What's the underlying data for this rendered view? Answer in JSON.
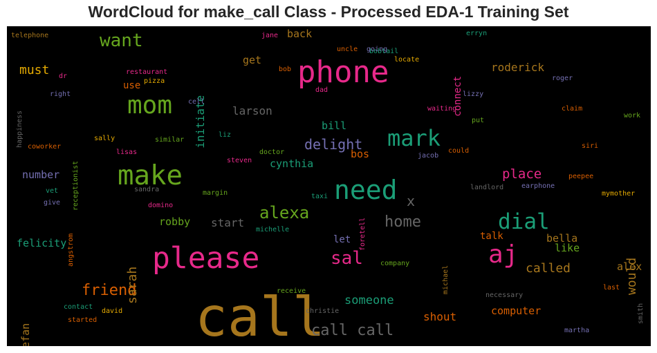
{
  "chart_data": {
    "type": "wordcloud",
    "title": "WordCloud for make_call Class - Processed EDA-1 Training Set",
    "words": [
      {
        "text": "call",
        "color": "#a6761d"
      },
      {
        "text": "please",
        "color": "#e7298a"
      },
      {
        "text": "phone",
        "color": "#e7298a"
      },
      {
        "text": "make",
        "color": "#66a61e"
      },
      {
        "text": "need",
        "color": "#1b9e77"
      },
      {
        "text": "mom",
        "color": "#66a61e"
      },
      {
        "text": "aj",
        "color": "#e7298a"
      },
      {
        "text": "mark",
        "color": "#1b9e77"
      },
      {
        "text": "dial",
        "color": "#1b9e77"
      },
      {
        "text": "want",
        "color": "#66a61e"
      },
      {
        "text": "alexa",
        "color": "#66a61e"
      },
      {
        "text": "friend",
        "color": "#d95f02"
      },
      {
        "text": "sal",
        "color": "#e7298a"
      },
      {
        "text": "home",
        "color": "#666666"
      },
      {
        "text": "call call",
        "color": "#666666"
      },
      {
        "text": "delight",
        "color": "#7570b3"
      },
      {
        "text": "sarah",
        "color": "#a6761d"
      },
      {
        "text": "would",
        "color": "#a6761d"
      },
      {
        "text": "place",
        "color": "#e7298a"
      },
      {
        "text": "called",
        "color": "#a6761d"
      },
      {
        "text": "someone",
        "color": "#1b9e77"
      },
      {
        "text": "must",
        "color": "#e6ab02"
      },
      {
        "text": "initiate",
        "color": "#1b9e77"
      },
      {
        "text": "x",
        "color": "#666666"
      },
      {
        "text": "roderick",
        "color": "#a6761d"
      },
      {
        "text": "connect",
        "color": "#e7298a"
      },
      {
        "text": "larson",
        "color": "#666666"
      },
      {
        "text": "cynthia",
        "color": "#1b9e77"
      },
      {
        "text": "number",
        "color": "#7570b3"
      },
      {
        "text": "robby",
        "color": "#66a61e"
      },
      {
        "text": "start",
        "color": "#666666"
      },
      {
        "text": "felicity",
        "color": "#1b9e77"
      },
      {
        "text": "stefan",
        "color": "#a6761d"
      },
      {
        "text": "computer",
        "color": "#d95f02"
      },
      {
        "text": "shout",
        "color": "#d95f02"
      },
      {
        "text": "bella",
        "color": "#a6761d"
      },
      {
        "text": "like",
        "color": "#66a61e"
      },
      {
        "text": "talk",
        "color": "#d95f02"
      },
      {
        "text": "alex",
        "color": "#a6761d"
      },
      {
        "text": "back",
        "color": "#a6761d"
      },
      {
        "text": "get",
        "color": "#a6761d"
      },
      {
        "text": "bill",
        "color": "#1b9e77"
      },
      {
        "text": "bos",
        "color": "#d95f02"
      },
      {
        "text": "let",
        "color": "#7570b3"
      },
      {
        "text": "use",
        "color": "#d95f02"
      },
      {
        "text": "telephone",
        "color": "#a6761d"
      },
      {
        "text": "jane",
        "color": "#e7298a"
      },
      {
        "text": "bobtail",
        "color": "#1b9e77"
      },
      {
        "text": "erryn",
        "color": "#1b9e77"
      },
      {
        "text": "uncle",
        "color": "#d95f02"
      },
      {
        "text": "going",
        "color": "#7570b3"
      },
      {
        "text": "locate",
        "color": "#e6ab02"
      },
      {
        "text": "bob",
        "color": "#d95f02"
      },
      {
        "text": "dad",
        "color": "#e7298a"
      },
      {
        "text": "dr",
        "color": "#e7298a"
      },
      {
        "text": "restaurant",
        "color": "#e7298a"
      },
      {
        "text": "pizza",
        "color": "#e6ab02"
      },
      {
        "text": "right",
        "color": "#7570b3"
      },
      {
        "text": "cell",
        "color": "#7570b3"
      },
      {
        "text": "lizzy",
        "color": "#7570b3"
      },
      {
        "text": "roger",
        "color": "#7570b3"
      },
      {
        "text": "waiting",
        "color": "#e7298a"
      },
      {
        "text": "claim",
        "color": "#d95f02"
      },
      {
        "text": "happiness",
        "color": "#666666"
      },
      {
        "text": "put",
        "color": "#66a61e"
      },
      {
        "text": "work",
        "color": "#66a61e"
      },
      {
        "text": "coworker",
        "color": "#d95f02"
      },
      {
        "text": "sally",
        "color": "#e6ab02"
      },
      {
        "text": "similar",
        "color": "#66a61e"
      },
      {
        "text": "liz",
        "color": "#1b9e77"
      },
      {
        "text": "siri",
        "color": "#d95f02"
      },
      {
        "text": "lisas",
        "color": "#e7298a"
      },
      {
        "text": "doctor",
        "color": "#66a61e"
      },
      {
        "text": "steven",
        "color": "#e7298a"
      },
      {
        "text": "jacob",
        "color": "#7570b3"
      },
      {
        "text": "could",
        "color": "#d95f02"
      },
      {
        "text": "receptionist",
        "color": "#66a61e"
      },
      {
        "text": "sandra",
        "color": "#666666"
      },
      {
        "text": "vet",
        "color": "#1b9e77"
      },
      {
        "text": "give",
        "color": "#7570b3"
      },
      {
        "text": "domino",
        "color": "#e7298a"
      },
      {
        "text": "margin",
        "color": "#66a61e"
      },
      {
        "text": "taxi",
        "color": "#1b9e77"
      },
      {
        "text": "landlord",
        "color": "#666666"
      },
      {
        "text": "earphone",
        "color": "#7570b3"
      },
      {
        "text": "peepee",
        "color": "#d95f02"
      },
      {
        "text": "mymother",
        "color": "#e6ab02"
      },
      {
        "text": "michelle",
        "color": "#1b9e77"
      },
      {
        "text": "foretell",
        "color": "#e7298a"
      },
      {
        "text": "angstrom",
        "color": "#d95f02"
      },
      {
        "text": "company",
        "color": "#66a61e"
      },
      {
        "text": "michael",
        "color": "#a6761d"
      },
      {
        "text": "last",
        "color": "#d95f02"
      },
      {
        "text": "receive",
        "color": "#66a61e"
      },
      {
        "text": "contact",
        "color": "#1b9e77"
      },
      {
        "text": "david",
        "color": "#e6ab02"
      },
      {
        "text": "christie",
        "color": "#666666"
      },
      {
        "text": "necessary",
        "color": "#666666"
      },
      {
        "text": "started",
        "color": "#d95f02"
      },
      {
        "text": "smith",
        "color": "#666666"
      },
      {
        "text": "martha",
        "color": "#7570b3"
      }
    ]
  }
}
